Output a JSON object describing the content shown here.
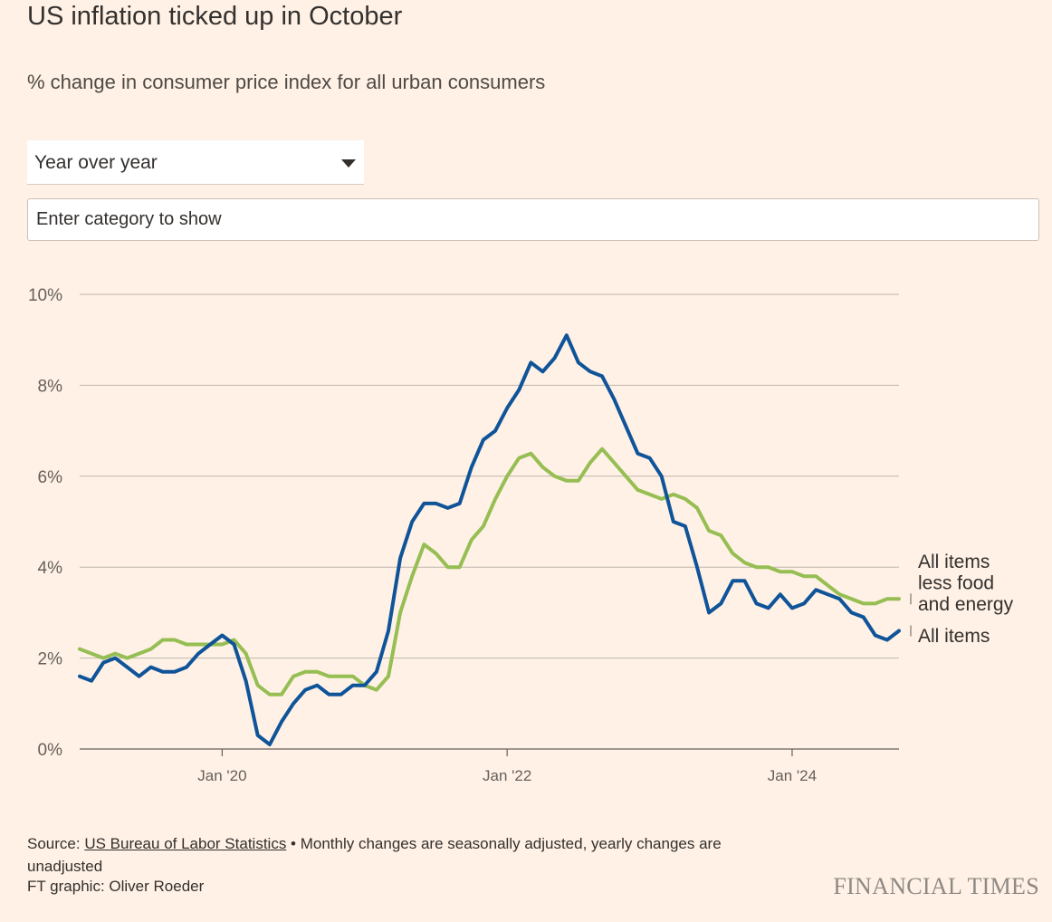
{
  "header": {
    "title": "US inflation ticked up in October",
    "subtitle": "% change in consumer price index for all urban consumers"
  },
  "controls": {
    "period_select": {
      "value": "Year over year"
    },
    "category_input": {
      "placeholder": "Enter category to show"
    }
  },
  "colors": {
    "background": "#FFF1E5",
    "all_items": "#0F5499",
    "core": "#96BE53",
    "gridline": "#BFB6AD"
  },
  "chart_data": {
    "type": "line",
    "title": "US inflation ticked up in October",
    "subtitle": "% change in consumer price index for all urban consumers",
    "xlabel": "",
    "ylabel": "",
    "ylim": [
      0,
      10
    ],
    "y_ticks": [
      0,
      2,
      4,
      6,
      8,
      10
    ],
    "y_tick_labels": [
      "0%",
      "2%",
      "4%",
      "6%",
      "8%",
      "10%"
    ],
    "x_tick_labels": [
      "Jan '20",
      "Jan '22",
      "Jan '24"
    ],
    "x_ticks": [
      "2020-01",
      "2022-01",
      "2024-01"
    ],
    "x_range": [
      "2019-01",
      "2024-10"
    ],
    "grid": true,
    "legend": "direct labels at line ends, right",
    "x": [
      "2019-01",
      "2019-02",
      "2019-03",
      "2019-04",
      "2019-05",
      "2019-06",
      "2019-07",
      "2019-08",
      "2019-09",
      "2019-10",
      "2019-11",
      "2019-12",
      "2020-01",
      "2020-02",
      "2020-03",
      "2020-04",
      "2020-05",
      "2020-06",
      "2020-07",
      "2020-08",
      "2020-09",
      "2020-10",
      "2020-11",
      "2020-12",
      "2021-01",
      "2021-02",
      "2021-03",
      "2021-04",
      "2021-05",
      "2021-06",
      "2021-07",
      "2021-08",
      "2021-09",
      "2021-10",
      "2021-11",
      "2021-12",
      "2022-01",
      "2022-02",
      "2022-03",
      "2022-04",
      "2022-05",
      "2022-06",
      "2022-07",
      "2022-08",
      "2022-09",
      "2022-10",
      "2022-11",
      "2022-12",
      "2023-01",
      "2023-02",
      "2023-03",
      "2023-04",
      "2023-05",
      "2023-06",
      "2023-07",
      "2023-08",
      "2023-09",
      "2023-10",
      "2023-11",
      "2023-12",
      "2024-01",
      "2024-02",
      "2024-03",
      "2024-04",
      "2024-05",
      "2024-06",
      "2024-07",
      "2024-08",
      "2024-09",
      "2024-10"
    ],
    "series": [
      {
        "name": "All items less food and energy",
        "label_lines": [
          "All items",
          "less food",
          "and energy"
        ],
        "color": "#96BE53",
        "values": [
          2.2,
          2.1,
          2.0,
          2.1,
          2.0,
          2.1,
          2.2,
          2.4,
          2.4,
          2.3,
          2.3,
          2.3,
          2.3,
          2.4,
          2.1,
          1.4,
          1.2,
          1.2,
          1.6,
          1.7,
          1.7,
          1.6,
          1.6,
          1.6,
          1.4,
          1.3,
          1.6,
          3.0,
          3.8,
          4.5,
          4.3,
          4.0,
          4.0,
          4.6,
          4.9,
          5.5,
          6.0,
          6.4,
          6.5,
          6.2,
          6.0,
          5.9,
          5.9,
          6.3,
          6.6,
          6.3,
          6.0,
          5.7,
          5.6,
          5.5,
          5.6,
          5.5,
          5.3,
          4.8,
          4.7,
          4.3,
          4.1,
          4.0,
          4.0,
          3.9,
          3.9,
          3.8,
          3.8,
          3.6,
          3.4,
          3.3,
          3.2,
          3.2,
          3.3,
          3.3
        ]
      },
      {
        "name": "All items",
        "label_lines": [
          "All items"
        ],
        "color": "#0F5499",
        "values": [
          1.6,
          1.5,
          1.9,
          2.0,
          1.8,
          1.6,
          1.8,
          1.7,
          1.7,
          1.8,
          2.1,
          2.3,
          2.5,
          2.3,
          1.5,
          0.3,
          0.1,
          0.6,
          1.0,
          1.3,
          1.4,
          1.2,
          1.2,
          1.4,
          1.4,
          1.7,
          2.6,
          4.2,
          5.0,
          5.4,
          5.4,
          5.3,
          5.4,
          6.2,
          6.8,
          7.0,
          7.5,
          7.9,
          8.5,
          8.3,
          8.6,
          9.1,
          8.5,
          8.3,
          8.2,
          7.7,
          7.1,
          6.5,
          6.4,
          6.0,
          5.0,
          4.9,
          4.0,
          3.0,
          3.2,
          3.7,
          3.7,
          3.2,
          3.1,
          3.4,
          3.1,
          3.2,
          3.5,
          3.4,
          3.3,
          3.0,
          2.9,
          2.5,
          2.4,
          2.6
        ]
      }
    ]
  },
  "footer": {
    "source_label": "Source: ",
    "source_link": "US Bureau of Labor Statistics",
    "source_note": " • Monthly changes are seasonally adjusted, yearly changes are unadjusted",
    "byline": "FT graphic: Oliver Roeder",
    "logo": "FINANCIAL TIMES"
  }
}
